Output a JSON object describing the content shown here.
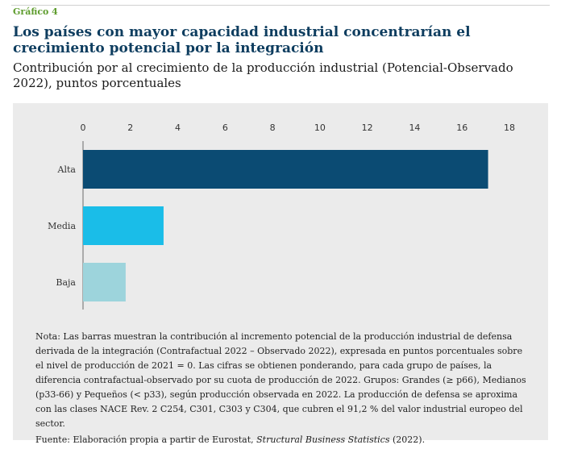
{
  "figure_label": "Gráfico 4",
  "title": "Los países con mayor capacidad industrial concentrarían el crecimiento potencial por la integración",
  "subtitle": "Contribución por al crecimiento de la producción industrial (Potencial-Observado 2022), puntos porcentuales",
  "chart_data": {
    "type": "bar",
    "orientation": "horizontal",
    "categories": [
      "Alta",
      "Media",
      "Baja"
    ],
    "values": [
      17.1,
      3.4,
      1.8
    ],
    "colors": [
      "#0b4b73",
      "#1abde8",
      "#9dd4dc"
    ],
    "xlim": [
      0,
      18
    ],
    "x_ticks": [
      0,
      2,
      4,
      6,
      8,
      10,
      12,
      14,
      16,
      18
    ],
    "axis_position": "top",
    "grid": false
  },
  "note": "Nota: Las barras muestran la contribución al incremento potencial de la producción industrial de defensa derivada de la integración (Contrafactual 2022 – Observado 2022), expresada en puntos porcentuales sobre el nivel de producción de 2021 = 0. Las cifras se obtienen ponderando, para cada grupo de países, la diferencia contrafactual-observado por su cuota de producción de 2022. Grupos: Grandes (≥ p66), Medianos (p33-66) y Pequeños (< p33), según producción observada en 2022. La producción de defensa se aproxima con las clases NACE Rev. 2 C254, C301, C303 y C304, que cubren el 91,2 % del valor industrial europeo del sector.",
  "source_prefix": "Fuente: Elaboración propia a partir de Eurostat, ",
  "source_italic": "Structural Business Statistics",
  "source_suffix": " (2022)."
}
